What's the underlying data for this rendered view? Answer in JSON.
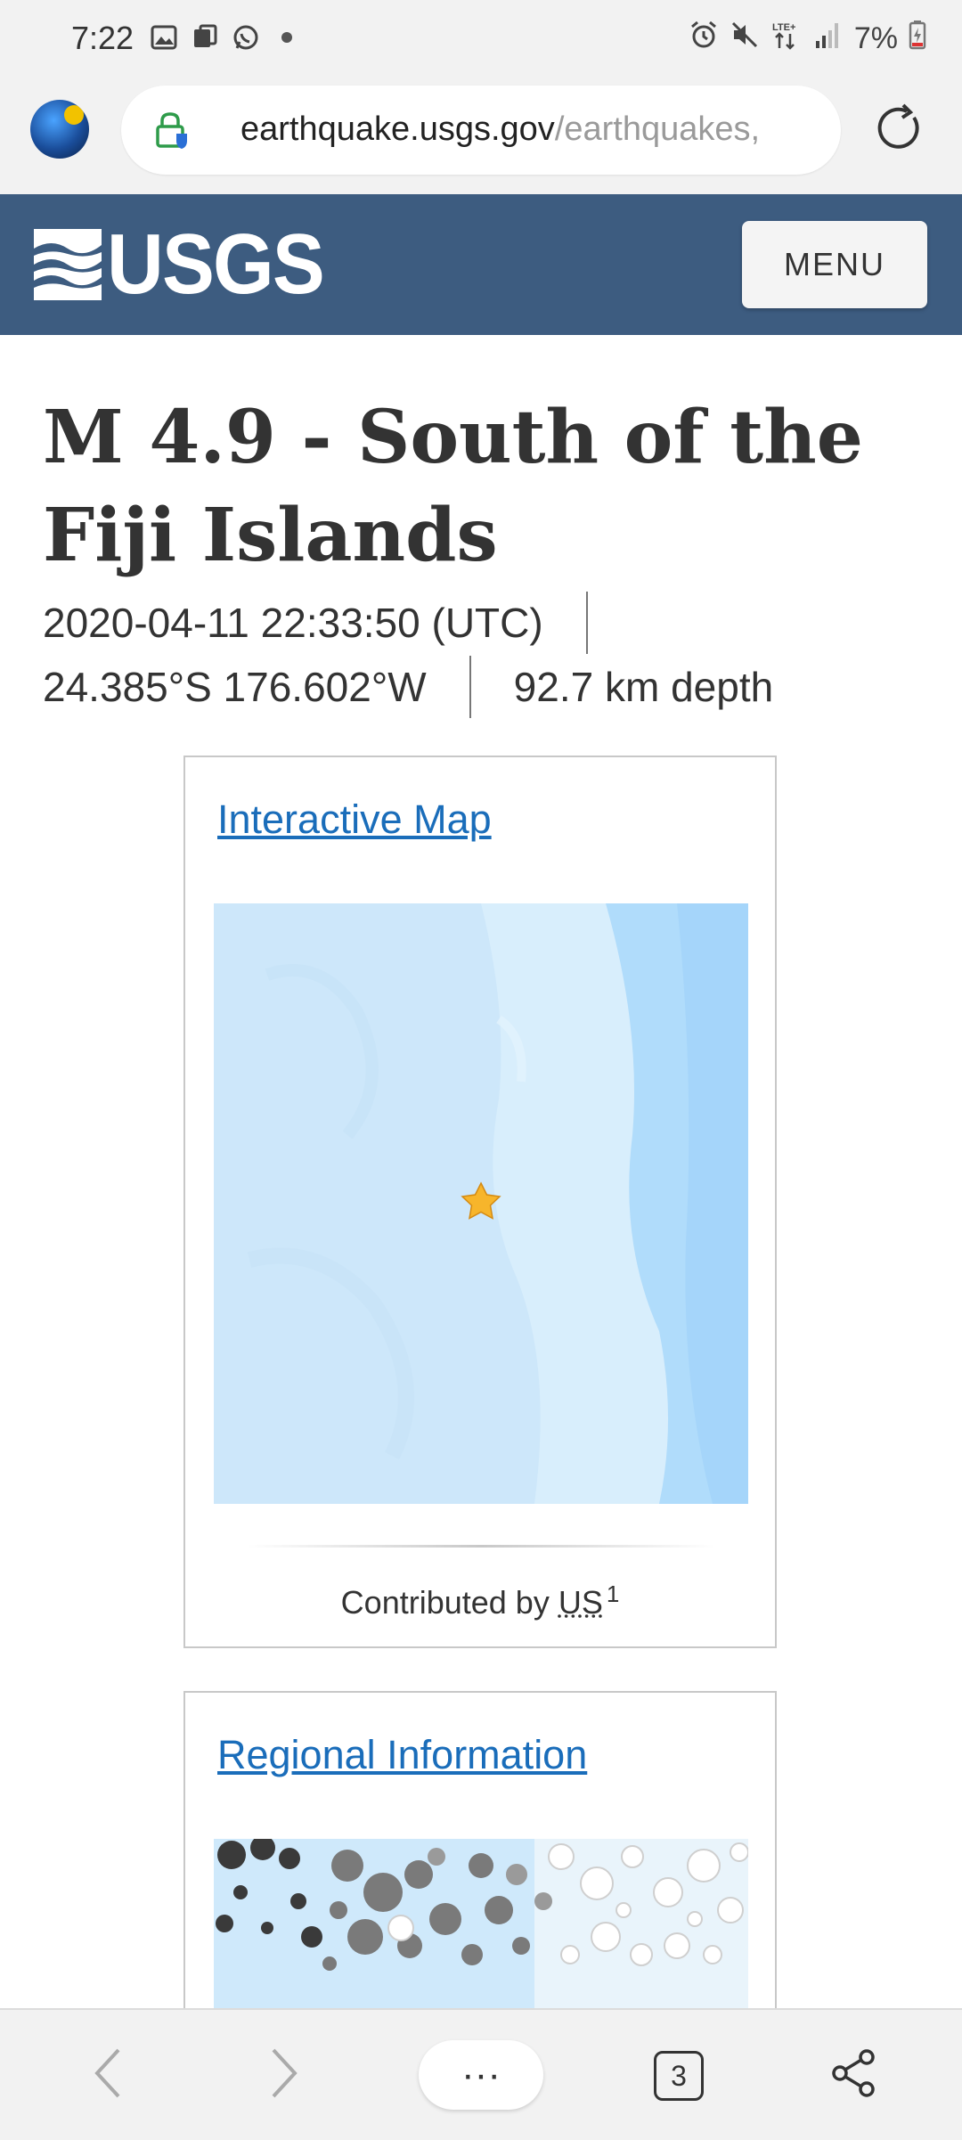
{
  "status_bar": {
    "time": "7:22",
    "battery": "7%",
    "icons": [
      "gallery-icon",
      "notification-icon",
      "whatsapp-icon",
      "dot-icon",
      "alarm-icon",
      "mute-icon",
      "lte-icon",
      "signal-icon",
      "battery-icon"
    ]
  },
  "browser": {
    "url_domain": "earthquake.usgs.gov",
    "url_path": "/earthquakes,",
    "icons": [
      "avatar",
      "lock-icon",
      "reload-icon"
    ]
  },
  "header": {
    "logo_text": "USGS",
    "menu_label": "MENU",
    "background": "#3d5c80"
  },
  "event": {
    "title": "M 4.9 - South of the Fiji Islands",
    "datetime": "2020-04-11 22:33:50 (UTC)",
    "coordinates": "24.385°S 176.602°W",
    "depth": "92.7 km depth"
  },
  "map_card": {
    "link": "Interactive Map",
    "contributed_by": "Contributed by",
    "contributor": "US",
    "footnote": "1",
    "marker": "star-icon"
  },
  "regional_card": {
    "link": "Regional Information"
  },
  "bottom_nav": {
    "more_label": "···",
    "tab_count": "3",
    "icons": [
      "back-icon",
      "forward-icon",
      "more-icon",
      "tabs-icon",
      "share-icon"
    ]
  },
  "colors": {
    "link": "#1a6dba",
    "ocean": "#cfe9fb",
    "title": "#333333"
  }
}
